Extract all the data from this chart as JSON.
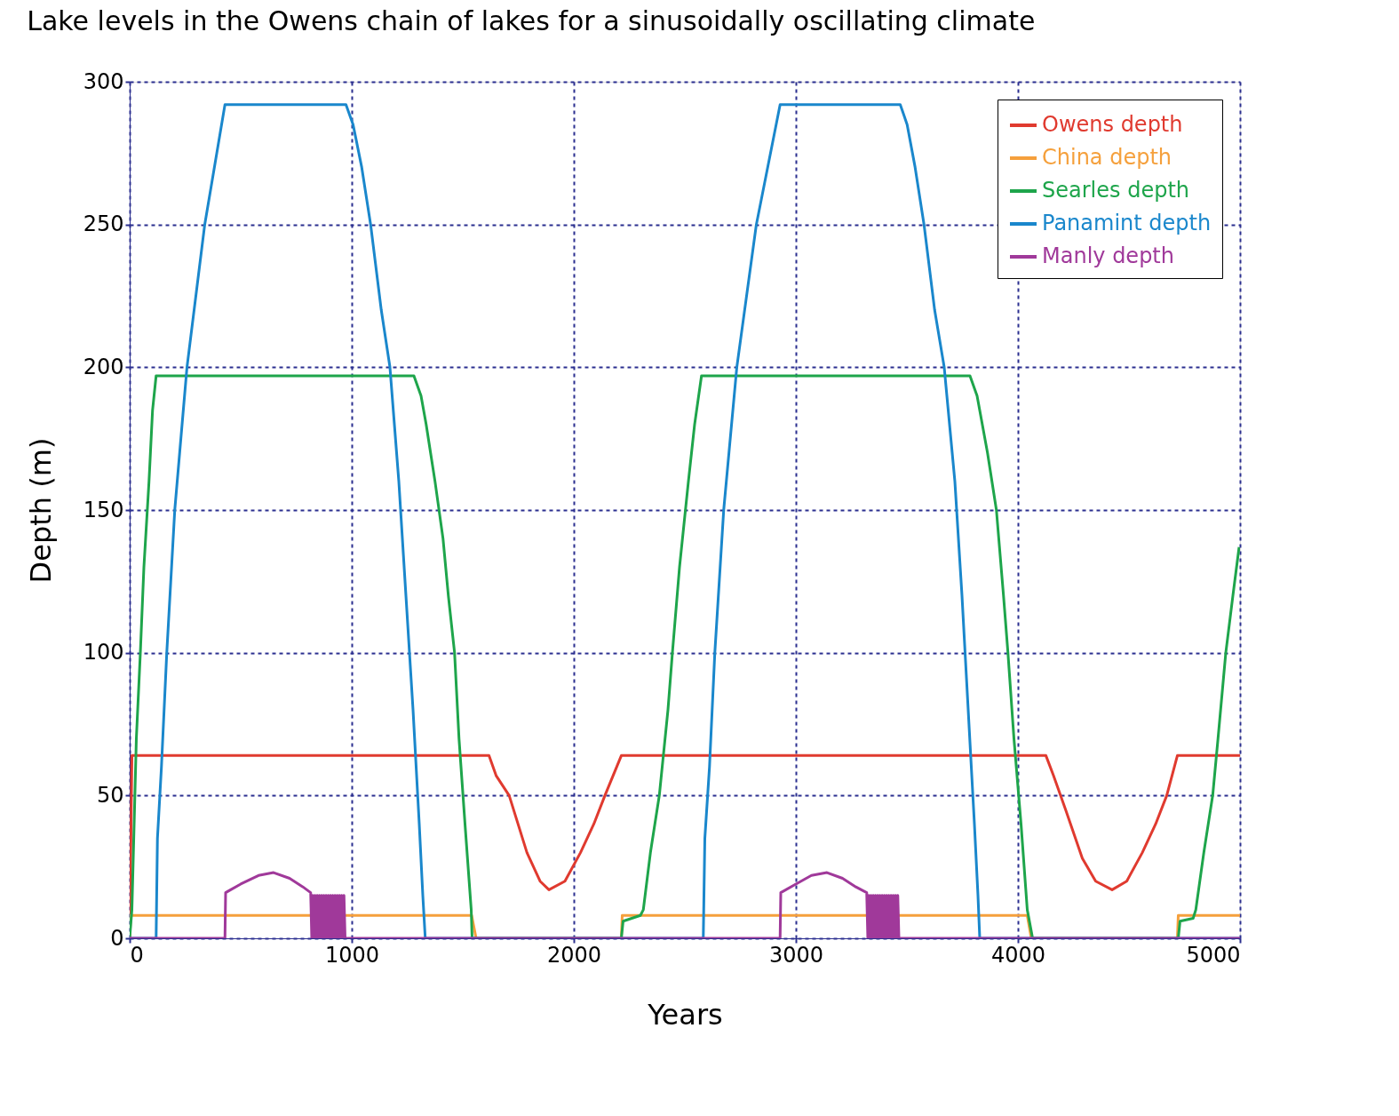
{
  "chart_data": {
    "type": "line",
    "title": "Lake levels in the Owens chain of lakes for a sinusoidally oscillating climate",
    "xlabel": "Years",
    "ylabel": "Depth (m)",
    "xlim": [
      0,
      5000
    ],
    "xticks": [
      0,
      1000,
      2000,
      3000,
      4000,
      5000
    ],
    "ylim": [
      0,
      300
    ],
    "yticks": [
      0,
      50,
      100,
      150,
      200,
      250,
      300
    ],
    "grid": true,
    "legend": "top right",
    "line_style": "solid",
    "series": [
      {
        "name": "Owens depth",
        "color": "#e03a2f",
        "x": [
          0,
          10,
          1618,
          1650,
          1709,
          1789,
          1848,
          1888,
          1960,
          2030,
          2090,
          2140,
          2214,
          4126,
          4160,
          4215,
          4290,
          4350,
          4424,
          4490,
          4560,
          4620,
          4670,
          4718,
          5000
        ],
        "values": [
          0,
          64,
          64,
          57,
          50,
          30,
          20,
          17,
          20,
          30,
          40,
          50,
          64,
          64,
          57,
          45,
          28,
          20,
          17,
          20,
          30,
          40,
          50,
          64,
          64
        ]
      },
      {
        "name": "China depth",
        "color": "#f5a03c",
        "x": [
          0,
          5,
          1540,
          1560,
          2214,
          2218,
          4042,
          4060,
          4718,
          4722,
          5000
        ],
        "values": [
          0,
          8,
          8,
          0,
          0,
          8,
          8,
          0,
          0,
          8,
          8
        ]
      },
      {
        "name": "Searles depth",
        "color": "#1ea54b",
        "x": [
          0,
          10,
          20,
          30,
          48,
          64,
          87,
          103,
          119,
          1280,
          1312,
          1335,
          1375,
          1411,
          1435,
          1463,
          1483,
          1510,
          1538,
          1542,
          2214,
          2222,
          2300,
          2313,
          2345,
          2385,
          2424,
          2444,
          2476,
          2516,
          2544,
          2575,
          3784,
          3816,
          3863,
          3903,
          3935,
          3955,
          3982,
          4014,
          4042,
          4066,
          4722,
          4730,
          4789,
          4801,
          4837,
          4877,
          4901,
          4936,
          4968,
          4996
        ],
        "values": [
          0,
          10,
          40,
          70,
          100,
          130,
          160,
          185,
          197,
          197,
          190,
          180,
          160,
          140,
          120,
          100,
          70,
          40,
          10,
          0,
          0,
          6,
          8,
          10,
          30,
          50,
          80,
          100,
          130,
          160,
          180,
          197,
          197,
          190,
          170,
          150,
          120,
          100,
          70,
          40,
          10,
          0,
          0,
          6,
          7,
          10,
          30,
          50,
          70,
          100,
          120,
          137
        ]
      },
      {
        "name": "Panamint depth",
        "color": "#1a87cc",
        "x": [
          0,
          119,
          125,
          143,
          167,
          203,
          258,
          338,
          429,
          974,
          1006,
          1045,
          1085,
          1133,
          1172,
          1212,
          1244,
          1276,
          1304,
          1320,
          1331,
          2583,
          2590,
          2611,
          2635,
          2675,
          2734,
          2822,
          2929,
          3470,
          3501,
          3537,
          3577,
          3625,
          3668,
          3716,
          3748,
          3776,
          3804,
          3820,
          3828,
          5000
        ],
        "values": [
          0,
          0,
          35,
          60,
          100,
          150,
          200,
          250,
          292,
          292,
          285,
          270,
          250,
          220,
          200,
          160,
          120,
          80,
          40,
          15,
          0,
          0,
          35,
          60,
          100,
          150,
          200,
          250,
          292,
          292,
          285,
          270,
          250,
          220,
          200,
          160,
          120,
          80,
          40,
          15,
          0,
          0
        ]
      },
      {
        "name": "Manly depth",
        "color": "#a0399a",
        "x": [
          0,
          429,
          432,
          500,
          580,
          648,
          720,
          780,
          815,
          820,
          825,
          830,
          835,
          840,
          845,
          850,
          855,
          860,
          865,
          870,
          875,
          880,
          885,
          890,
          895,
          900,
          905,
          910,
          915,
          920,
          925,
          930,
          935,
          940,
          945,
          950,
          955,
          960,
          965,
          970,
          974,
          2929,
          2932,
          3000,
          3070,
          3140,
          3210,
          3270,
          3319,
          3324,
          3329,
          3334,
          3339,
          3344,
          3349,
          3354,
          3359,
          3364,
          3369,
          3374,
          3379,
          3384,
          3389,
          3394,
          3399,
          3404,
          3409,
          3414,
          3419,
          3424,
          3429,
          3434,
          3439,
          3444,
          3449,
          3454,
          3459,
          3464,
          3470,
          5000
        ],
        "values": [
          0,
          0,
          16,
          19,
          22,
          23,
          21,
          18,
          16,
          0,
          15,
          0,
          15,
          0,
          15,
          0,
          15,
          0,
          15,
          0,
          15,
          0,
          15,
          0,
          15,
          0,
          15,
          0,
          15,
          0,
          15,
          0,
          15,
          0,
          15,
          0,
          15,
          0,
          15,
          0,
          0,
          0,
          16,
          19,
          22,
          23,
          21,
          18,
          16,
          0,
          15,
          0,
          15,
          0,
          15,
          0,
          15,
          0,
          15,
          0,
          15,
          0,
          15,
          0,
          15,
          0,
          15,
          0,
          15,
          0,
          15,
          0,
          15,
          0,
          15,
          0,
          15,
          0,
          0,
          0
        ]
      }
    ]
  }
}
